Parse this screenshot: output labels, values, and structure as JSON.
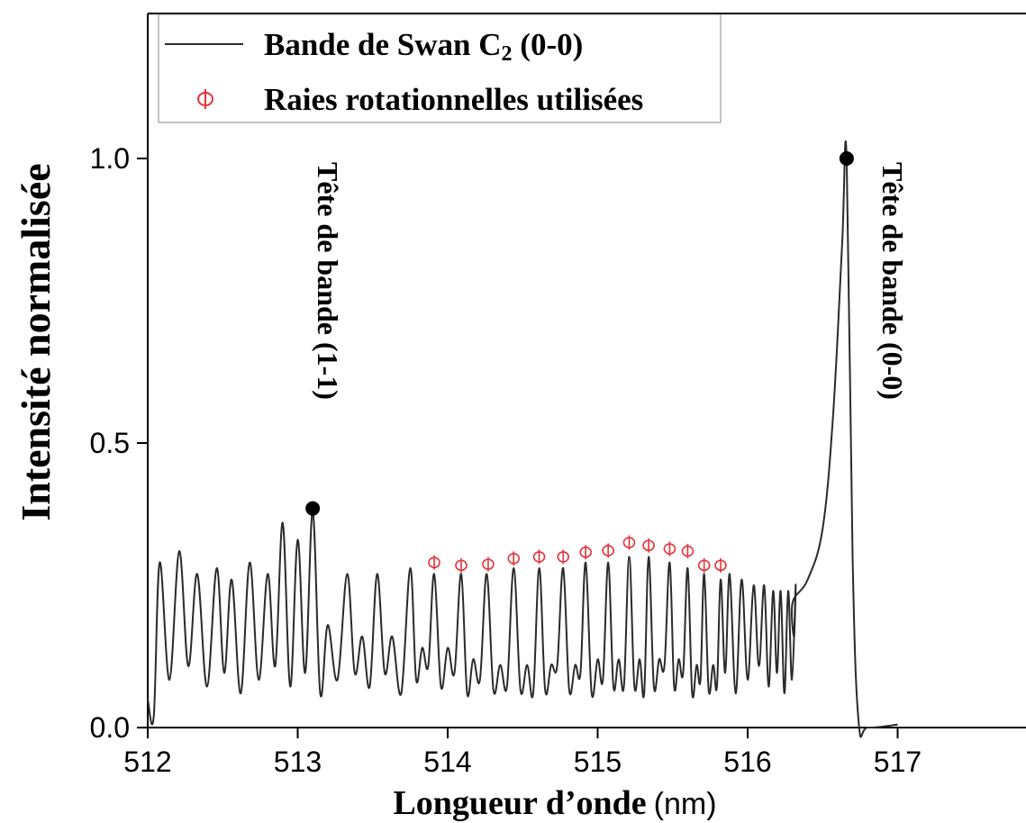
{
  "chart_data": {
    "type": "line",
    "xlabel": "Longueur d’onde",
    "xlabel_unit": "(nm)",
    "ylabel": "Intensité normalisée",
    "xlim": [
      512,
      517.5
    ],
    "ylim": [
      0,
      1.25
    ],
    "x_ticks": [
      512,
      513,
      514,
      515,
      516,
      517
    ],
    "y_ticks": [
      0.0,
      0.5,
      1.0
    ],
    "x_tick_labels": [
      "512",
      "513",
      "514",
      "515",
      "516",
      "517"
    ],
    "y_tick_labels": [
      "0.0",
      "0.5",
      "1.0"
    ],
    "legend_position": "top-left",
    "legend": {
      "line_label": "Bande de Swan C",
      "line_label_sub": "2",
      "line_label_suffix": " (0-0)",
      "marker_label": "Raies rotationnelles utilisées"
    },
    "colors": {
      "line": "#2b2b2b",
      "markers": "#e8333a",
      "heads": "#000000"
    },
    "series": [
      {
        "name": "Bande de Swan C2 (0-0)",
        "peaks": [
          [
            512.08,
            0.29
          ],
          [
            512.21,
            0.31
          ],
          [
            512.33,
            0.27
          ],
          [
            512.46,
            0.28
          ],
          [
            512.56,
            0.26
          ],
          [
            512.68,
            0.29
          ],
          [
            512.8,
            0.27
          ],
          [
            512.9,
            0.36
          ],
          [
            513.0,
            0.33
          ],
          [
            513.1,
            0.38
          ],
          [
            513.2,
            0.18
          ],
          [
            513.33,
            0.27
          ],
          [
            513.43,
            0.16
          ],
          [
            513.53,
            0.27
          ],
          [
            513.63,
            0.16
          ],
          [
            513.75,
            0.28
          ],
          [
            513.83,
            0.14
          ],
          [
            513.91,
            0.27
          ],
          [
            514.0,
            0.14
          ],
          [
            514.09,
            0.27
          ],
          [
            514.17,
            0.12
          ],
          [
            514.26,
            0.27
          ],
          [
            514.35,
            0.11
          ],
          [
            514.44,
            0.28
          ],
          [
            514.53,
            0.11
          ],
          [
            514.61,
            0.28
          ],
          [
            514.69,
            0.11
          ],
          [
            514.77,
            0.28
          ],
          [
            514.85,
            0.11
          ],
          [
            514.92,
            0.29
          ],
          [
            515.0,
            0.12
          ],
          [
            515.07,
            0.29
          ],
          [
            515.14,
            0.12
          ],
          [
            515.21,
            0.3
          ],
          [
            515.28,
            0.12
          ],
          [
            515.34,
            0.3
          ],
          [
            515.41,
            0.12
          ],
          [
            515.48,
            0.29
          ],
          [
            515.54,
            0.12
          ],
          [
            515.6,
            0.28
          ],
          [
            515.66,
            0.11
          ],
          [
            515.71,
            0.27
          ],
          [
            515.77,
            0.11
          ],
          [
            515.82,
            0.26
          ],
          [
            515.88,
            0.27
          ],
          [
            515.96,
            0.26
          ],
          [
            516.04,
            0.25
          ],
          [
            516.11,
            0.25
          ],
          [
            516.17,
            0.24
          ],
          [
            516.22,
            0.24
          ],
          [
            516.27,
            0.24
          ],
          [
            516.32,
            0.25
          ]
        ],
        "valley_level": 0.06,
        "band_head_edge": {
          "rise_start": 516.3,
          "peak_x": 516.66,
          "peak_y": 1.0,
          "fall_end": 516.74
        },
        "tail": [
          [
            516.74,
            0.01
          ],
          [
            516.8,
            0.0
          ],
          [
            517.0,
            0.005
          ]
        ]
      }
    ],
    "rotational_lines": [
      [
        513.91,
        0.29
      ],
      [
        514.09,
        0.285
      ],
      [
        514.27,
        0.287
      ],
      [
        514.44,
        0.297
      ],
      [
        514.61,
        0.3
      ],
      [
        514.77,
        0.3
      ],
      [
        514.92,
        0.308
      ],
      [
        515.07,
        0.311
      ],
      [
        515.21,
        0.325
      ],
      [
        515.34,
        0.32
      ],
      [
        515.48,
        0.314
      ],
      [
        515.6,
        0.31
      ],
      [
        515.71,
        0.285
      ],
      [
        515.82,
        0.285
      ]
    ],
    "band_heads": [
      {
        "x": 513.1,
        "y": 0.385,
        "label": "Tête de bande (1-1)"
      },
      {
        "x": 516.66,
        "y": 1.0,
        "label": "Tête de bande (0-0)"
      }
    ]
  }
}
